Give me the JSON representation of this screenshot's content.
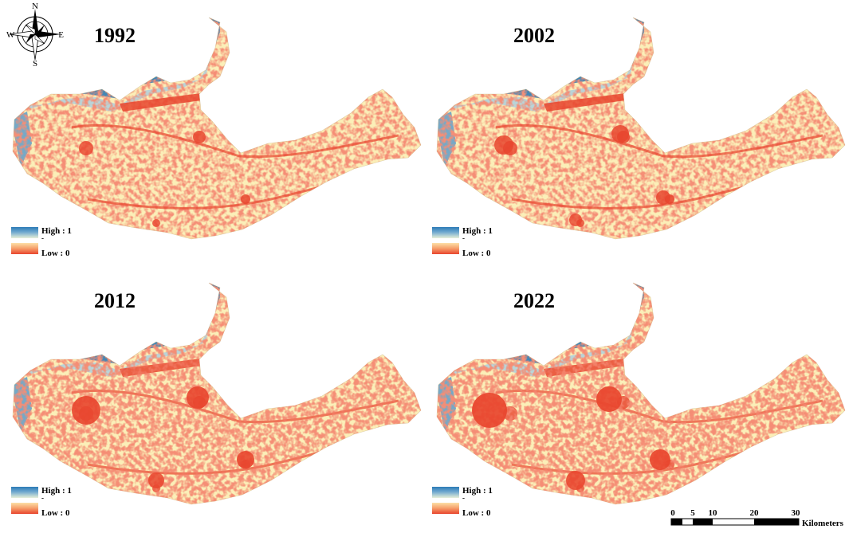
{
  "compass": {
    "north": "N",
    "south": "S",
    "east": "E",
    "west": "W",
    "icon": "compass-rose-icon"
  },
  "panels": [
    {
      "year": "1992",
      "legend": {
        "high": "High : 1",
        "dash": "-",
        "low": "Low : 0"
      }
    },
    {
      "year": "2002",
      "legend": {
        "high": "High : 1",
        "dash": "-",
        "low": "Low : 0"
      }
    },
    {
      "year": "2012",
      "legend": {
        "high": "High : 1",
        "dash": "-",
        "low": "Low : 0"
      }
    },
    {
      "year": "2022",
      "legend": {
        "high": "High : 1",
        "dash": "-",
        "low": "Low : 0"
      }
    }
  ],
  "scale_bar": {
    "ticks": [
      "0",
      "5",
      "10",
      "20",
      "30"
    ],
    "unit": "Kilometers"
  },
  "colors": {
    "high": "#2c7bb6",
    "mid": "#fbf0b5",
    "low": "#e8452e",
    "ocean": "#ffffff"
  }
}
